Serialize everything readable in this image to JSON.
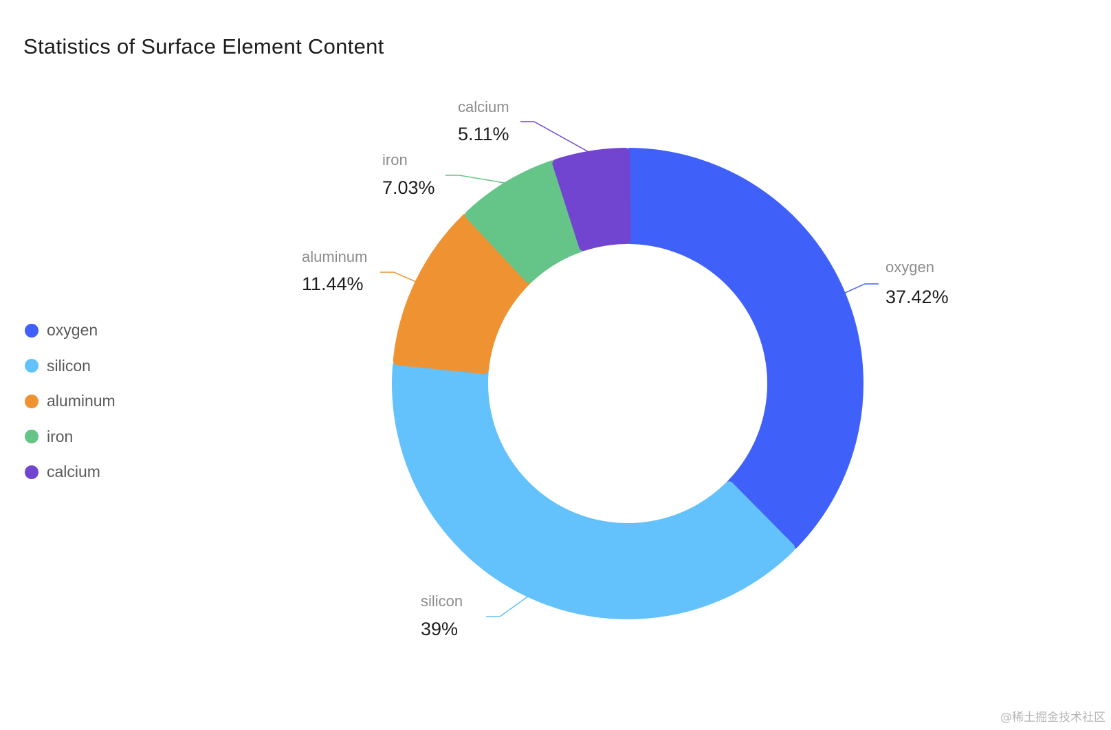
{
  "chart_data": {
    "type": "pie",
    "title": "Statistics of Surface Element Content",
    "subtitle": "",
    "donut": true,
    "legend_position": "left",
    "series": [
      {
        "name": "oxygen",
        "value": 37.42,
        "label": "37.42%",
        "color": "#3F61F9"
      },
      {
        "name": "silicon",
        "value": 39,
        "label": "39%",
        "color": "#63C1FB"
      },
      {
        "name": "aluminum",
        "value": 11.44,
        "label": "11.44%",
        "color": "#EE9232"
      },
      {
        "name": "iron",
        "value": 7.03,
        "label": "7.03%",
        "color": "#65C487"
      },
      {
        "name": "calcium",
        "value": 5.11,
        "label": "5.11%",
        "color": "#7245D1"
      }
    ]
  },
  "watermark": "@稀土掘金技术社区"
}
